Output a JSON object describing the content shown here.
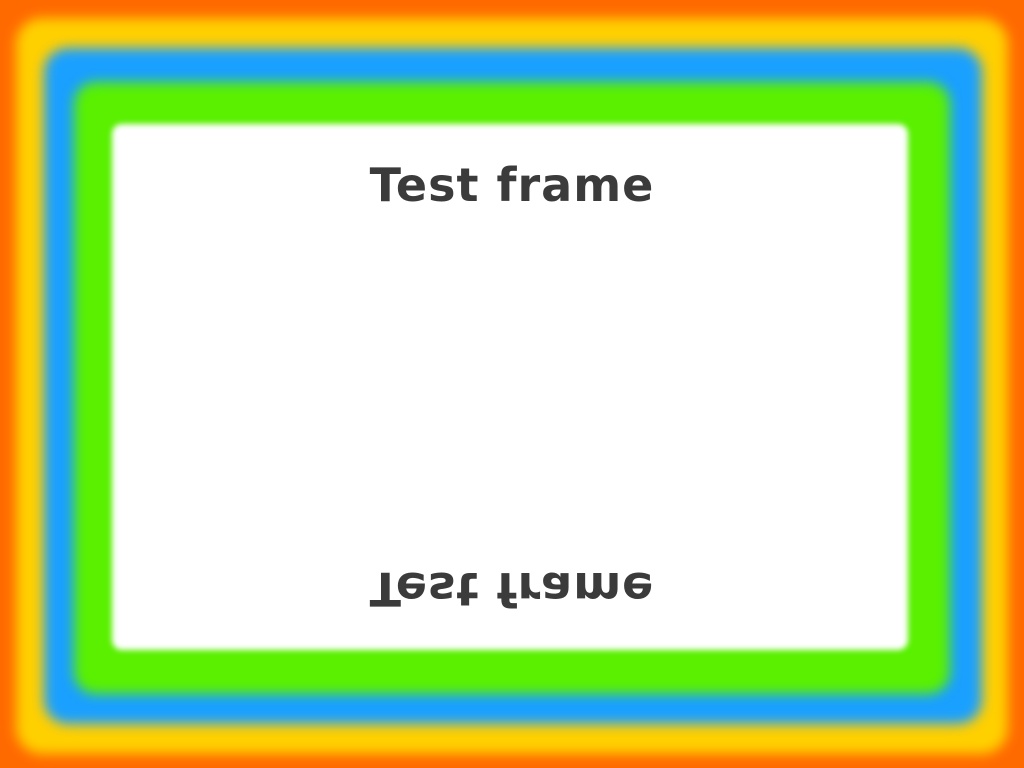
{
  "frame": {
    "top_caption": "Test frame",
    "bottom_caption": "Test frame"
  },
  "colors": {
    "outer": "#ff6a00",
    "yellow": "#ffd000",
    "blue": "#1aa0ff",
    "green": "#5af000",
    "inner": "#ffffff",
    "text": "#3b3b3b"
  }
}
